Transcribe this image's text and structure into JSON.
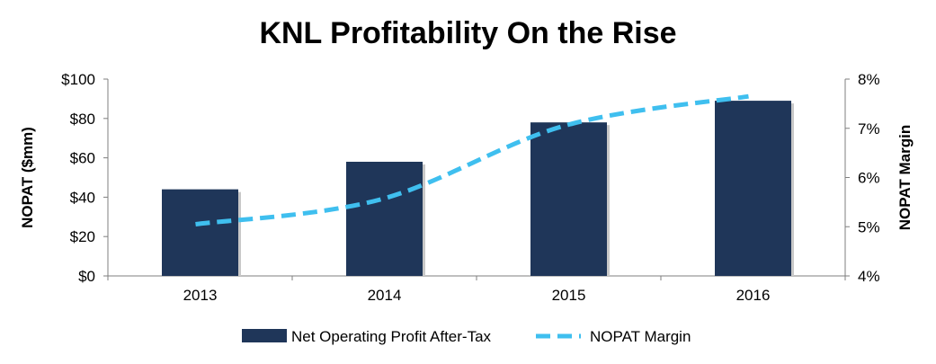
{
  "chart_data": {
    "type": "bar",
    "title": "KNL Profitability On the Rise",
    "categories": [
      "2013",
      "2014",
      "2015",
      "2016"
    ],
    "series": [
      {
        "name": "Net Operating Profit After-Tax",
        "type": "bar",
        "axis": "left",
        "values": [
          44,
          58,
          78,
          89
        ],
        "color": "#1f3659"
      },
      {
        "name": "NOPAT Margin",
        "type": "line",
        "style": "dashed",
        "axis": "right",
        "values": [
          5.05,
          5.55,
          7.05,
          7.65
        ],
        "color": "#3fbfef"
      }
    ],
    "ylabel": "NOPAT ($mm)",
    "y2label": "NOPAT Margin",
    "ylim": [
      0,
      100
    ],
    "y2lim": [
      4,
      8
    ],
    "yticks": [
      "$0",
      "$20",
      "$40",
      "$60",
      "$80",
      "$100"
    ],
    "y2ticks": [
      "4%",
      "5%",
      "6%",
      "7%",
      "8%"
    ],
    "grid": false,
    "legend_position": "bottom"
  }
}
